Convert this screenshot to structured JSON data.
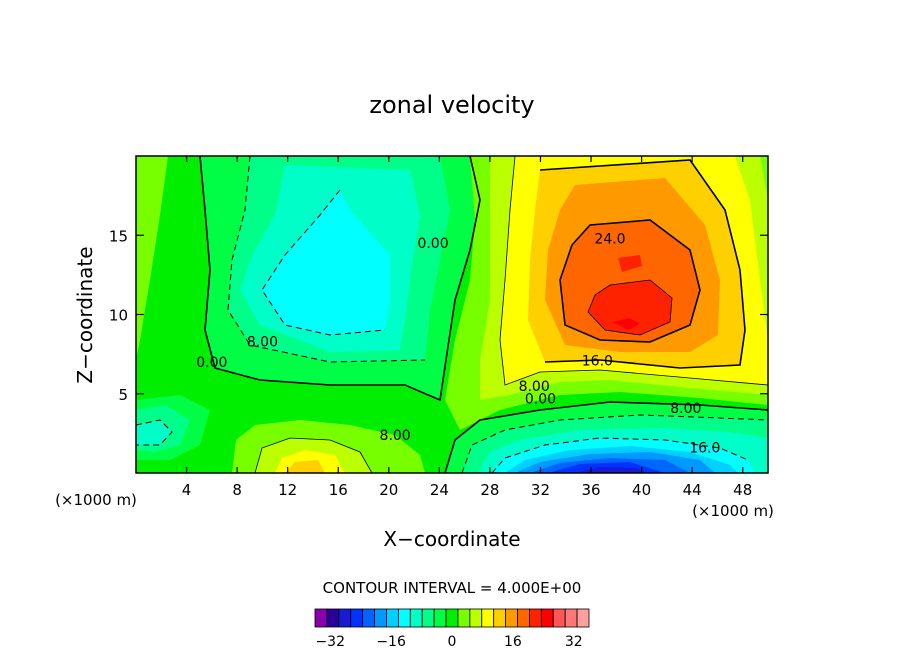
{
  "chart_data": {
    "type": "heatmap",
    "title": "zonal velocity",
    "xlabel": "X−coordinate",
    "ylabel": "Z−coordinate",
    "x_unit_left": "(×1000 m)",
    "x_unit_right": "(×1000 m)",
    "xlim": [
      0,
      50
    ],
    "ylim": [
      0,
      20
    ],
    "x_ticks": [
      4,
      8,
      12,
      16,
      20,
      24,
      28,
      32,
      36,
      40,
      44,
      48
    ],
    "x_tick_labels": [
      "4",
      "8",
      "12",
      "16",
      "20",
      "24",
      "28",
      "32",
      "36",
      "40",
      "44",
      "48"
    ],
    "y_ticks": [
      5,
      10,
      15
    ],
    "y_tick_labels": [
      "5",
      "10",
      "15"
    ],
    "contour_interval_text": "CONTOUR INTERVAL = 4.000E+00",
    "contour_interval": 4.0,
    "contour_labels": [
      {
        "text": "24.0",
        "x": 37.5,
        "z": 14.8
      },
      {
        "text": "16.0",
        "x": 36.5,
        "z": 7.1
      },
      {
        "text": "8.00",
        "x": 31.5,
        "z": 5.5
      },
      {
        "text": "0.00",
        "x": 32.0,
        "z": 4.7
      },
      {
        "text": "8.00",
        "x": 43.5,
        "z": 4.1
      },
      {
        "text": "16.0",
        "x": 45.0,
        "z": 1.6
      },
      {
        "text": "0.00",
        "x": 23.5,
        "z": 14.5
      },
      {
        "text": "8.00",
        "x": 10.0,
        "z": 8.3
      },
      {
        "text": "0.00",
        "x": 6.0,
        "z": 7.0
      },
      {
        "text": "8.00",
        "x": 20.5,
        "z": 2.4
      }
    ],
    "colorbar": {
      "levels": [
        -36,
        -32,
        -28,
        -24,
        -20,
        -16,
        -12,
        -8,
        -4,
        0,
        4,
        8,
        12,
        16,
        20,
        24,
        28,
        32,
        36
      ],
      "tick_values": [
        -32,
        -16,
        0,
        16,
        32
      ],
      "tick_labels": [
        "−32",
        "−16",
        "0",
        "16",
        "32"
      ],
      "colors": [
        "#8800aa",
        "#2a0099",
        "#1a1ad0",
        "#0033ff",
        "#0066ff",
        "#0099ff",
        "#00d0ff",
        "#00ffff",
        "#00ffc8",
        "#00ff88",
        "#00ff44",
        "#00ee00",
        "#77ff00",
        "#bbff00",
        "#ffff00",
        "#ffd000",
        "#ff9900",
        "#ff6600",
        "#ff2200",
        "#ff0000",
        "#ff5555",
        "#ff7777",
        "#ffa0a0"
      ]
    },
    "features": [
      {
        "name": "positive maximum",
        "x": 38.5,
        "z": 9.5,
        "value": 32
      },
      {
        "name": "secondary positive maximum",
        "x": 38.0,
        "z": 13.0,
        "value": 28
      },
      {
        "name": "negative minimum",
        "x": 38.0,
        "z": 0.5,
        "value": -28
      },
      {
        "name": "negative mid-level region",
        "x": 16.0,
        "z": 12.0,
        "value": -12
      },
      {
        "name": "lower positive region",
        "x": 15.0,
        "z": 1.0,
        "value": 20
      }
    ]
  }
}
